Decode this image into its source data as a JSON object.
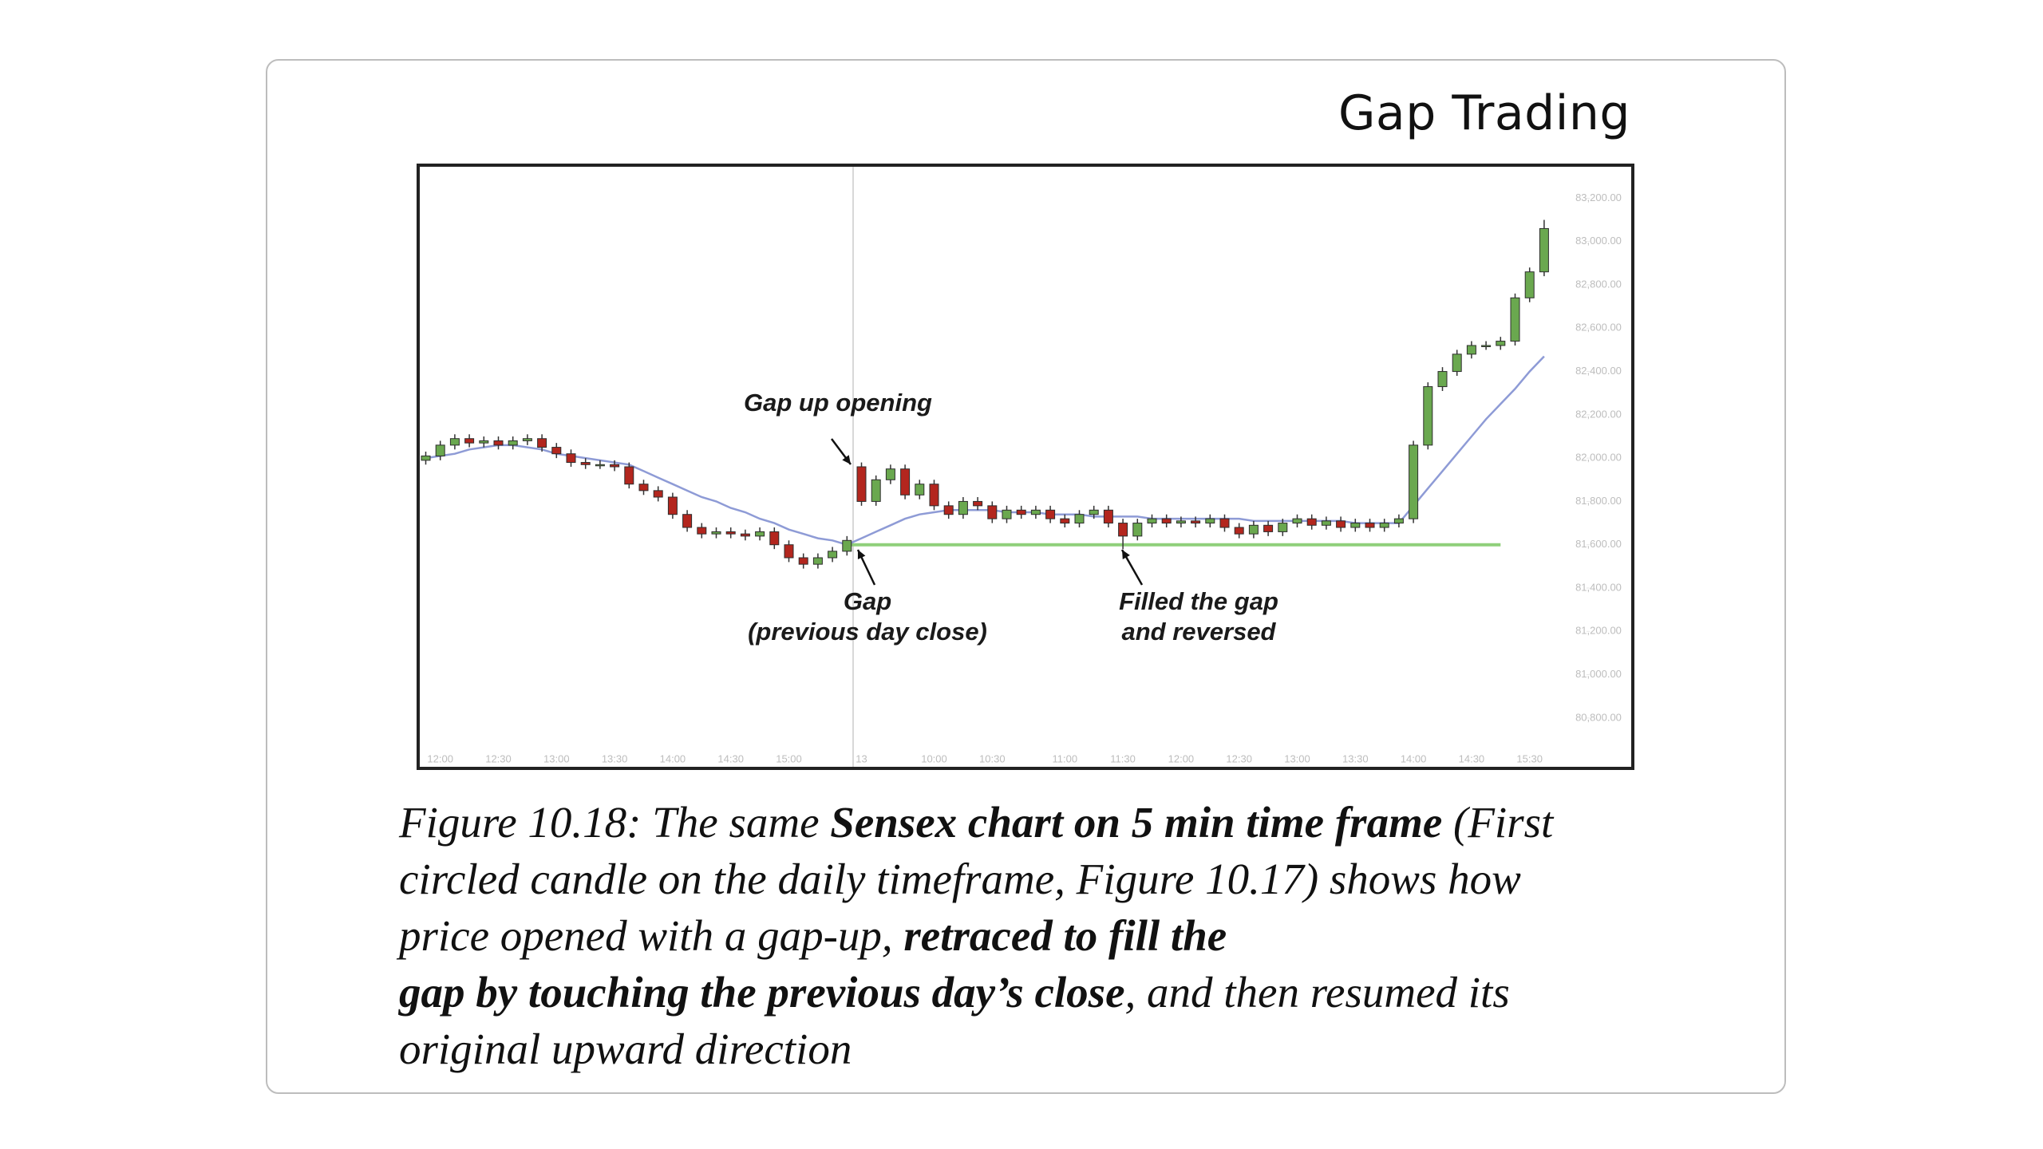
{
  "header": {
    "title": "Gap Trading"
  },
  "chart_data": {
    "type": "candlestick",
    "up_color": "#6aa84f",
    "down_color": "#b3261e",
    "categories": [
      null,
      "12:00",
      null,
      null,
      null,
      "12:30",
      null,
      null,
      null,
      "13:00",
      null,
      null,
      null,
      "13:30",
      null,
      null,
      null,
      "14:00",
      null,
      null,
      null,
      "14:30",
      null,
      null,
      null,
      "15:00",
      null,
      null,
      null,
      null,
      "13",
      null,
      null,
      null,
      null,
      "10:00",
      null,
      null,
      null,
      "10:30",
      null,
      null,
      null,
      null,
      "11:00",
      null,
      null,
      null,
      "11:30",
      null,
      null,
      null,
      "12:00",
      null,
      null,
      null,
      "12:30",
      null,
      null,
      null,
      "13:00",
      null,
      null,
      null,
      "13:30",
      null,
      null,
      null,
      "14:00",
      null,
      null,
      null,
      "14:30",
      null,
      null,
      null,
      "15:30",
      null
    ],
    "open": [
      81990,
      82010,
      82060,
      82090,
      82070,
      82080,
      82060,
      82080,
      82090,
      82050,
      82020,
      81980,
      81970,
      81970,
      81960,
      81880,
      81850,
      81820,
      81740,
      81680,
      81650,
      81660,
      81650,
      81640,
      81660,
      81600,
      81540,
      81510,
      81540,
      81570,
      81960,
      81800,
      81900,
      81950,
      81830,
      81880,
      81780,
      81740,
      81800,
      81780,
      81720,
      81760,
      81740,
      81760,
      81720,
      81700,
      81740,
      81760,
      81700,
      81640,
      81700,
      81720,
      81700,
      81710,
      81700,
      81720,
      81680,
      81650,
      81690,
      81660,
      81700,
      81720,
      81690,
      81710,
      81680,
      81700,
      81680,
      81700,
      81720,
      82060,
      82330,
      82400,
      82480,
      82520,
      82520,
      82540,
      82740,
      82860
    ],
    "high": [
      82030,
      82080,
      82110,
      82110,
      82100,
      82100,
      82100,
      82110,
      82110,
      82070,
      82040,
      82000,
      81990,
      81990,
      81980,
      81900,
      81870,
      81840,
      81760,
      81700,
      81680,
      81680,
      81670,
      81680,
      81680,
      81620,
      81560,
      81560,
      81590,
      81640,
      81980,
      81920,
      81970,
      81970,
      81900,
      81900,
      81800,
      81820,
      81820,
      81800,
      81780,
      81780,
      81780,
      81780,
      81740,
      81760,
      81780,
      81780,
      81720,
      81720,
      81740,
      81740,
      81730,
      81730,
      81740,
      81740,
      81700,
      81710,
      81710,
      81720,
      81740,
      81740,
      81730,
      81730,
      81720,
      81720,
      81720,
      81740,
      82080,
      82350,
      82420,
      82500,
      82540,
      82540,
      82560,
      82760,
      82880,
      83100
    ],
    "low": [
      81970,
      81990,
      82040,
      82050,
      82050,
      82040,
      82040,
      82060,
      82030,
      82000,
      81960,
      81950,
      81950,
      81940,
      81860,
      81830,
      81800,
      81720,
      81660,
      81630,
      81630,
      81630,
      81620,
      81620,
      81580,
      81520,
      81490,
      81490,
      81520,
      81550,
      81780,
      81780,
      81880,
      81810,
      81810,
      81760,
      81720,
      81720,
      81760,
      81700,
      81700,
      81720,
      81720,
      81700,
      81680,
      81680,
      81720,
      81680,
      81580,
      81620,
      81680,
      81680,
      81680,
      81680,
      81680,
      81660,
      81630,
      81630,
      81640,
      81640,
      81680,
      81670,
      81670,
      81660,
      81660,
      81660,
      81660,
      81680,
      81700,
      82040,
      82310,
      82380,
      82460,
      82500,
      82500,
      82520,
      82720,
      82840
    ],
    "close": [
      82010,
      82060,
      82090,
      82070,
      82080,
      82060,
      82080,
      82090,
      82050,
      82020,
      81980,
      81970,
      81970,
      81960,
      81880,
      81850,
      81820,
      81740,
      81680,
      81650,
      81660,
      81650,
      81640,
      81660,
      81600,
      81540,
      81510,
      81540,
      81570,
      81620,
      81800,
      81900,
      81950,
      81830,
      81880,
      81780,
      81740,
      81800,
      81780,
      81720,
      81760,
      81740,
      81760,
      81720,
      81700,
      81740,
      81760,
      81700,
      81640,
      81700,
      81720,
      81700,
      81710,
      81700,
      81720,
      81680,
      81650,
      81690,
      81660,
      81700,
      81720,
      81690,
      81710,
      81680,
      81700,
      81680,
      81700,
      81720,
      82060,
      82330,
      82400,
      82480,
      82520,
      82520,
      82540,
      82740,
      82860,
      83060
    ],
    "moving_average": {
      "color": "#8e9bd6",
      "values": [
        82000,
        82010,
        82020,
        82040,
        82050,
        82060,
        82060,
        82050,
        82040,
        82020,
        82010,
        82000,
        81990,
        81980,
        81970,
        81940,
        81910,
        81880,
        81850,
        81820,
        81800,
        81770,
        81750,
        81720,
        81700,
        81670,
        81650,
        81630,
        81620,
        81600,
        81630,
        81660,
        81690,
        81720,
        81740,
        81750,
        81760,
        81760,
        81760,
        81760,
        81750,
        81750,
        81750,
        81740,
        81740,
        81740,
        81730,
        81730,
        81730,
        81730,
        81720,
        81720,
        81720,
        81720,
        81720,
        81720,
        81720,
        81710,
        81710,
        81710,
        81710,
        81710,
        81710,
        81710,
        81700,
        81700,
        81700,
        81700,
        81780,
        81860,
        81940,
        82020,
        82100,
        82180,
        82250,
        82320,
        82400,
        82470
      ]
    },
    "gap_level": 81600,
    "gap_color": "#8fcf7a",
    "ylim": [
      80560,
      83360
    ],
    "yticks": [
      {
        "value": 83200,
        "label": "83,200.00"
      },
      {
        "value": 83000,
        "label": "83,000.00"
      },
      {
        "value": 82800,
        "label": "82,800.00"
      },
      {
        "value": 82600,
        "label": "82,600.00"
      },
      {
        "value": 82400,
        "label": "82,400.00"
      },
      {
        "value": 82200,
        "label": "82,200.00"
      },
      {
        "value": 82000,
        "label": "82,000.00"
      },
      {
        "value": 81800,
        "label": "81,800.00"
      },
      {
        "value": 81600,
        "label": "81,600.00"
      },
      {
        "value": 81400,
        "label": "81,400.00"
      },
      {
        "value": 81200,
        "label": "81,200.00"
      },
      {
        "value": 81000,
        "label": "81,000.00"
      },
      {
        "value": 80800,
        "label": "80,800.00"
      }
    ],
    "annotations": [
      {
        "lines": [
          "Gap up opening"
        ]
      },
      {
        "lines": [
          "Gap",
          "(previous day close)"
        ]
      },
      {
        "lines": [
          "Filled the gap",
          "and reversed"
        ]
      }
    ]
  },
  "caption": {
    "lines": [
      [
        {
          "text": "Figure 10.18: The same ",
          "bold": false
        },
        {
          "text": "Sensex chart on 5 min time frame",
          "bold": true
        },
        {
          "text": " (First",
          "bold": false
        }
      ],
      [
        {
          "text": "circled candle on the daily timeframe, Figure 10.17) shows how",
          "bold": false
        }
      ],
      [
        {
          "text": "price opened with a gap-up, ",
          "bold": false
        },
        {
          "text": "retraced to fill the",
          "bold": true
        }
      ],
      [
        {
          "text": "gap by touching the previous day’s close",
          "bold": true
        },
        {
          "text": ", and then resumed its",
          "bold": false
        }
      ],
      [
        {
          "text": "original upward direction",
          "bold": false
        }
      ]
    ]
  }
}
